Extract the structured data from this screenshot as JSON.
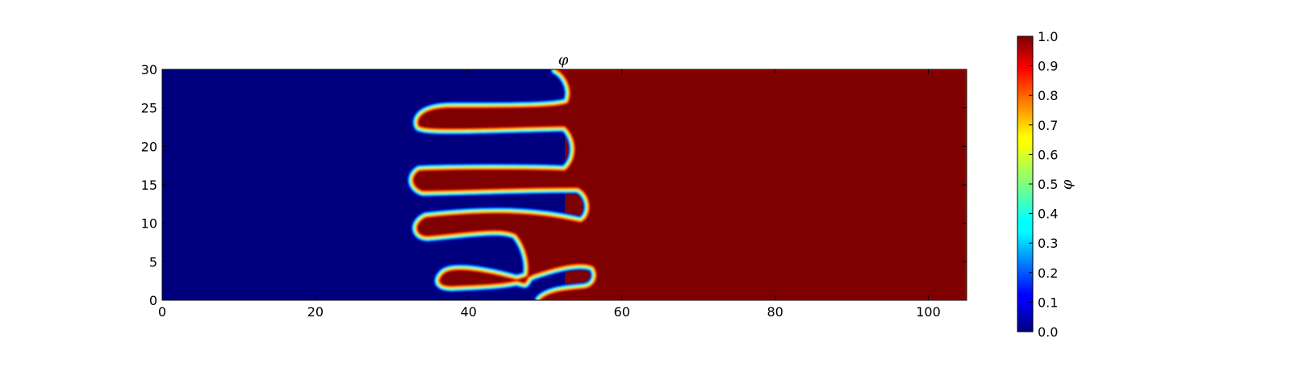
{
  "chart_data": {
    "type": "heatmap",
    "title": "φ",
    "colorbar_label": "φ",
    "colormap": "jet",
    "xlim": [
      0,
      105
    ],
    "ylim": [
      0,
      30
    ],
    "vlim": [
      0.0,
      1.0
    ],
    "x_ticks": [
      0,
      20,
      40,
      60,
      80,
      100
    ],
    "y_ticks": [
      0,
      5,
      10,
      15,
      20,
      25,
      30
    ],
    "colorbar_ticks": [
      "0.0",
      "0.1",
      "0.2",
      "0.3",
      "0.4",
      "0.5",
      "0.6",
      "0.7",
      "0.8",
      "0.9",
      "1.0"
    ],
    "colors": {
      "low": "#00007f",
      "high": "#7f0000",
      "axes": "#000000"
    },
    "regions": [
      {
        "name": "phase-low",
        "value": 0.0,
        "x_range": [
          0,
          34
        ]
      },
      {
        "name": "interface-fingers",
        "x_range": [
          33,
          57
        ],
        "note": "interpenetrating fingers with diffuse interface"
      },
      {
        "name": "phase-high",
        "value": 1.0,
        "x_range": [
          57,
          105
        ]
      }
    ]
  }
}
